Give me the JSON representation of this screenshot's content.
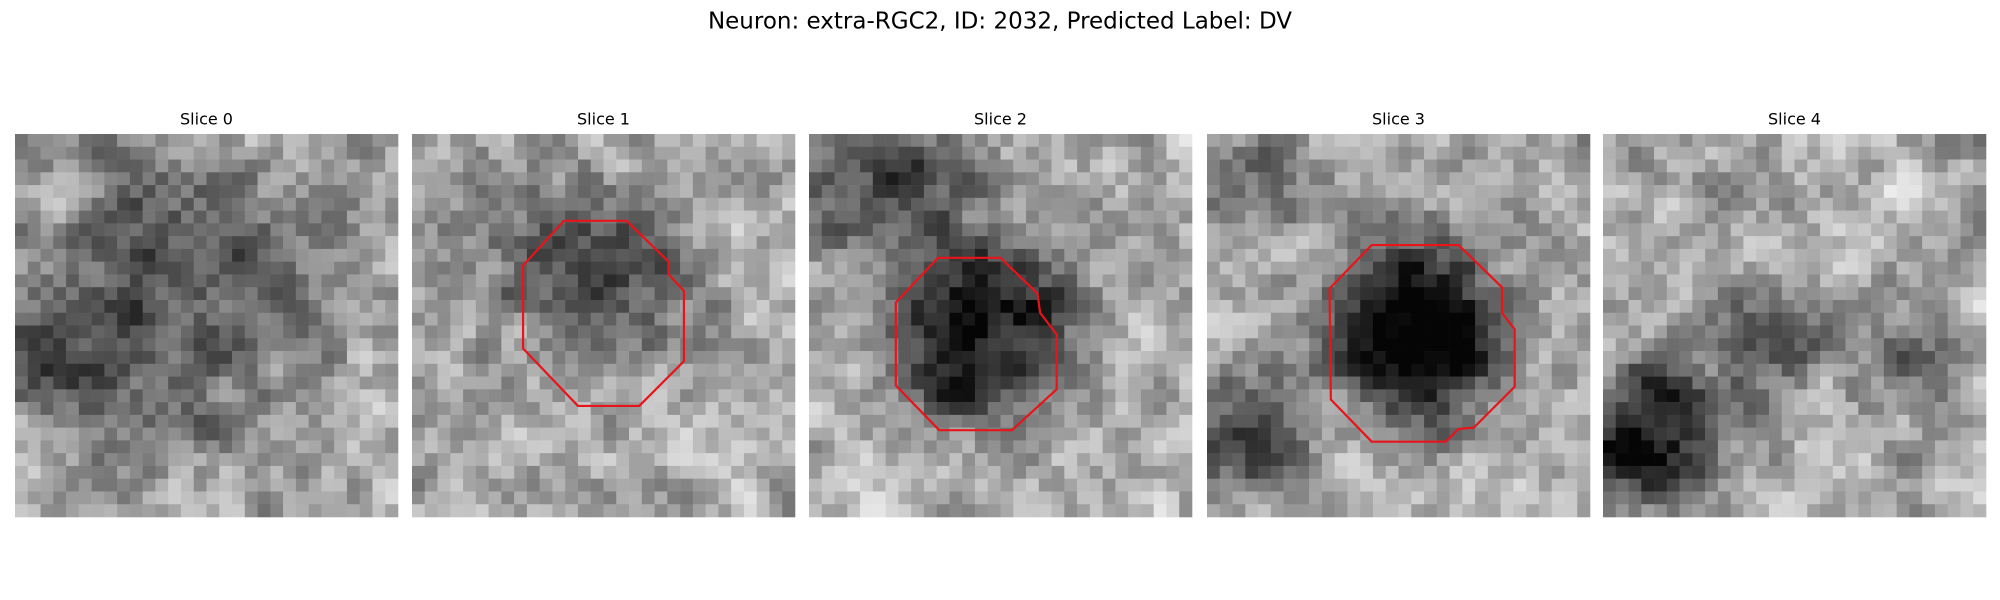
{
  "title": "Neuron: extra-RGC2, ID: 2032, Predicted Label: DV",
  "panels": [
    {
      "title": "Slice 0"
    },
    {
      "title": "Slice 1"
    },
    {
      "title": "Slice 2"
    },
    {
      "title": "Slice 3"
    },
    {
      "title": "Slice 4"
    }
  ]
}
